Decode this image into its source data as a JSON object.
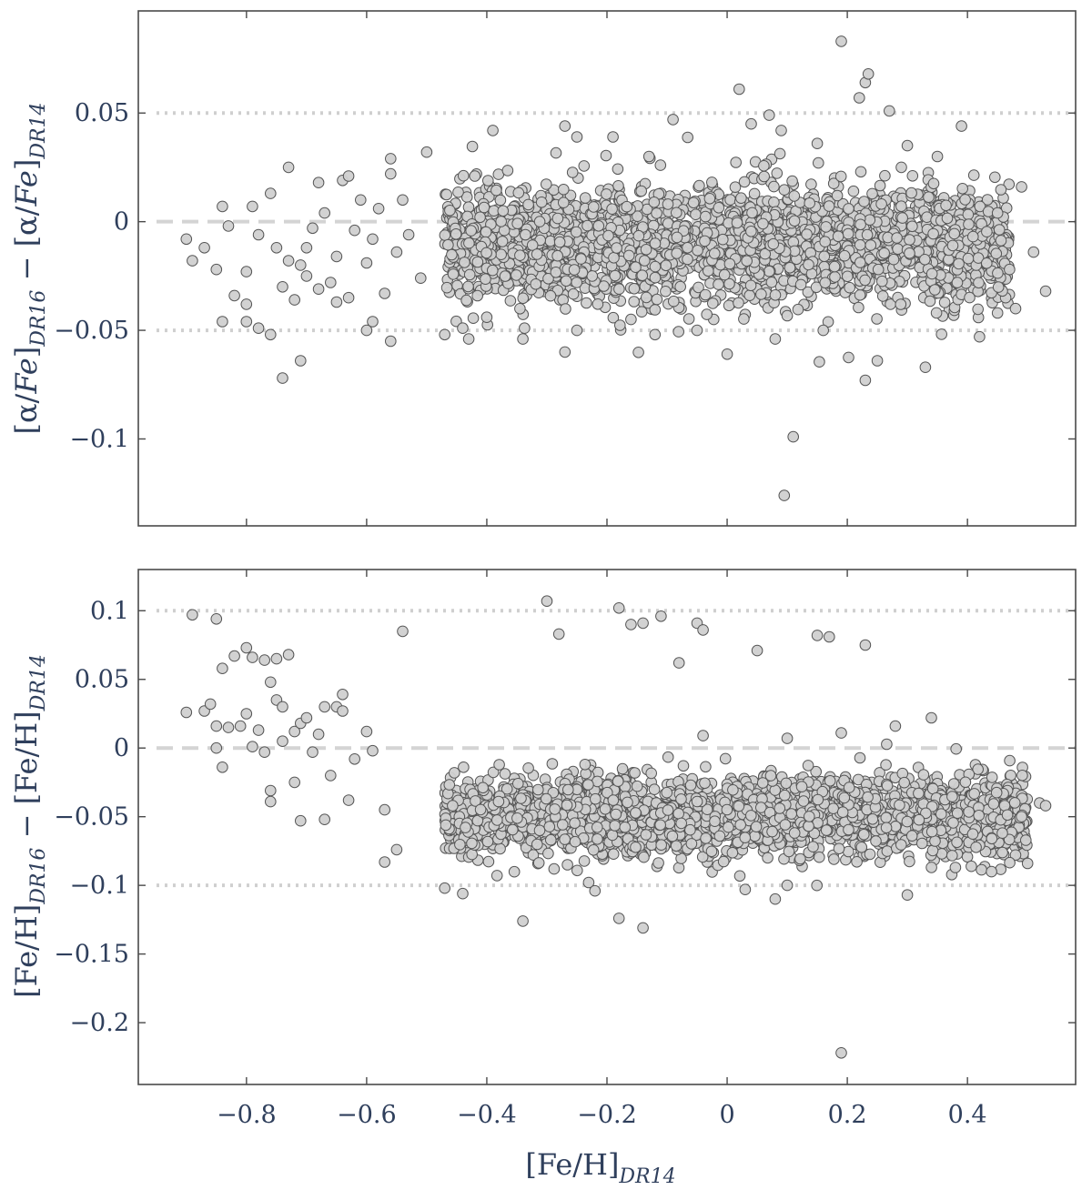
{
  "chart_data": [
    {
      "type": "scatter",
      "panel": "top",
      "xlim": [
        -0.98,
        0.58
      ],
      "ylim": [
        -0.14,
        0.097
      ],
      "xticks": [
        -0.8,
        -0.6,
        -0.4,
        -0.2,
        0,
        0.2,
        0.4
      ],
      "yticks": [
        0.05,
        0,
        -0.05,
        -0.1
      ],
      "ytick_labels": [
        "0.05",
        "0",
        "−0.05",
        "−0.1"
      ],
      "ylabel_parts": {
        "open": "[α/",
        "fe": "Fe",
        "close1": "]",
        "sub1": "DR16",
        "minus": " − [α/",
        "fe2": "Fe",
        "close2": "]",
        "sub2": "DR14"
      },
      "reference_lines": {
        "dashed": [
          0
        ],
        "dotted": [
          0.05,
          -0.05
        ]
      },
      "grid": false,
      "legend": "none",
      "bulk": {
        "n": 2600,
        "x_range": [
          -0.47,
          0.47
        ],
        "y_mean": -0.01,
        "y_sd": 0.013
      },
      "points": [
        {
          "x": -0.9,
          "y": -0.008
        },
        {
          "x": -0.89,
          "y": -0.018
        },
        {
          "x": -0.87,
          "y": -0.012
        },
        {
          "x": -0.85,
          "y": -0.022
        },
        {
          "x": -0.84,
          "y": 0.007
        },
        {
          "x": -0.83,
          "y": -0.002
        },
        {
          "x": -0.82,
          "y": -0.034
        },
        {
          "x": -0.84,
          "y": -0.046
        },
        {
          "x": -0.8,
          "y": -0.023
        },
        {
          "x": -0.79,
          "y": 0.007
        },
        {
          "x": -0.78,
          "y": -0.006
        },
        {
          "x": -0.76,
          "y": 0.013
        },
        {
          "x": -0.75,
          "y": -0.012
        },
        {
          "x": -0.74,
          "y": -0.03
        },
        {
          "x": -0.73,
          "y": 0.025
        },
        {
          "x": -0.73,
          "y": -0.018
        },
        {
          "x": -0.76,
          "y": -0.052
        },
        {
          "x": -0.78,
          "y": -0.049
        },
        {
          "x": -0.8,
          "y": -0.046
        },
        {
          "x": -0.8,
          "y": -0.038
        },
        {
          "x": -0.72,
          "y": -0.036
        },
        {
          "x": -0.71,
          "y": -0.02
        },
        {
          "x": -0.7,
          "y": -0.012
        },
        {
          "x": -0.7,
          "y": -0.025
        },
        {
          "x": -0.69,
          "y": -0.003
        },
        {
          "x": -0.68,
          "y": 0.018
        },
        {
          "x": -0.67,
          "y": 0.004
        },
        {
          "x": -0.66,
          "y": -0.028
        },
        {
          "x": -0.65,
          "y": -0.016
        },
        {
          "x": -0.64,
          "y": 0.019
        },
        {
          "x": -0.63,
          "y": 0.021
        },
        {
          "x": -0.62,
          "y": -0.004
        },
        {
          "x": -0.61,
          "y": 0.01
        },
        {
          "x": -0.6,
          "y": -0.019
        },
        {
          "x": -0.59,
          "y": -0.008
        },
        {
          "x": -0.58,
          "y": 0.006
        },
        {
          "x": -0.57,
          "y": -0.033
        },
        {
          "x": -0.56,
          "y": 0.022
        },
        {
          "x": -0.56,
          "y": 0.029
        },
        {
          "x": -0.55,
          "y": -0.014
        },
        {
          "x": -0.54,
          "y": 0.01
        },
        {
          "x": -0.53,
          "y": -0.006
        },
        {
          "x": -0.51,
          "y": -0.026
        },
        {
          "x": -0.5,
          "y": 0.032
        },
        {
          "x": -0.59,
          "y": -0.046
        },
        {
          "x": -0.6,
          "y": -0.05
        },
        {
          "x": -0.56,
          "y": -0.055
        },
        {
          "x": -0.71,
          "y": -0.064
        },
        {
          "x": -0.74,
          "y": -0.072
        },
        {
          "x": -0.68,
          "y": -0.031
        },
        {
          "x": -0.65,
          "y": -0.037
        },
        {
          "x": -0.63,
          "y": -0.035
        },
        {
          "x": -0.47,
          "y": -0.052
        },
        {
          "x": -0.43,
          "y": -0.054
        },
        {
          "x": -0.44,
          "y": -0.049
        },
        {
          "x": -0.4,
          "y": -0.044
        },
        {
          "x": -0.34,
          "y": -0.054
        },
        {
          "x": -0.27,
          "y": -0.06
        },
        {
          "x": -0.25,
          "y": -0.05
        },
        {
          "x": -0.16,
          "y": -0.045
        },
        {
          "x": -0.12,
          "y": -0.052
        },
        {
          "x": -0.05,
          "y": -0.05
        },
        {
          "x": 0.0,
          "y": -0.061
        },
        {
          "x": 0.08,
          "y": -0.054
        },
        {
          "x": 0.16,
          "y": -0.05
        },
        {
          "x": 0.23,
          "y": -0.073
        },
        {
          "x": 0.25,
          "y": -0.064
        },
        {
          "x": 0.33,
          "y": -0.067
        },
        {
          "x": 0.42,
          "y": -0.053
        },
        {
          "x": 0.45,
          "y": -0.042
        },
        {
          "x": 0.48,
          "y": -0.04
        },
        {
          "x": 0.53,
          "y": -0.032
        },
        {
          "x": 0.51,
          "y": -0.014
        },
        {
          "x": 0.49,
          "y": 0.016
        },
        {
          "x": 0.47,
          "y": -0.022
        },
        {
          "x": 0.45,
          "y": 0.004
        },
        {
          "x": -0.39,
          "y": 0.042
        },
        {
          "x": -0.27,
          "y": 0.044
        },
        {
          "x": -0.25,
          "y": 0.039
        },
        {
          "x": -0.19,
          "y": 0.039
        },
        {
          "x": -0.13,
          "y": 0.03
        },
        {
          "x": -0.09,
          "y": 0.047
        },
        {
          "x": 0.02,
          "y": 0.061
        },
        {
          "x": 0.04,
          "y": 0.045
        },
        {
          "x": 0.07,
          "y": 0.049
        },
        {
          "x": 0.09,
          "y": 0.042
        },
        {
          "x": 0.15,
          "y": 0.036
        },
        {
          "x": 0.19,
          "y": 0.083
        },
        {
          "x": 0.22,
          "y": 0.057
        },
        {
          "x": 0.23,
          "y": 0.064
        },
        {
          "x": 0.235,
          "y": 0.068
        },
        {
          "x": 0.27,
          "y": 0.051
        },
        {
          "x": 0.3,
          "y": 0.035
        },
        {
          "x": 0.35,
          "y": 0.03
        },
        {
          "x": 0.39,
          "y": 0.044
        },
        {
          "x": 0.29,
          "y": 0.025
        },
        {
          "x": 0.11,
          "y": -0.099
        },
        {
          "x": 0.095,
          "y": -0.126
        }
      ]
    },
    {
      "type": "scatter",
      "panel": "bottom",
      "xlim": [
        -0.98,
        0.58
      ],
      "ylim": [
        -0.245,
        0.13
      ],
      "xticks": [
        -0.8,
        -0.6,
        -0.4,
        -0.2,
        0,
        0.2,
        0.4
      ],
      "xtick_labels": [
        "−0.8",
        "−0.6",
        "−0.4",
        "−0.2",
        "0",
        "0.2",
        "0.4"
      ],
      "yticks": [
        0.1,
        0.05,
        0,
        -0.05,
        -0.1,
        -0.15,
        -0.2
      ],
      "ytick_labels": [
        "0.1",
        "0.05",
        "0",
        "−0.05",
        "−0.1",
        "−0.15",
        "−0.2"
      ],
      "xlabel_parts": {
        "main": "[Fe/H]",
        "sub": "DR14"
      },
      "ylabel_parts": {
        "open": "[Fe/H]",
        "sub1": "DR16",
        "minus": " − [Fe/H]",
        "sub2": "DR14"
      },
      "reference_lines": {
        "dashed": [
          0
        ],
        "dotted": [
          0.1,
          -0.1
        ]
      },
      "grid": false,
      "legend": "none",
      "bulk": {
        "n": 2600,
        "x_range": [
          -0.47,
          0.5
        ],
        "y_mean": -0.05,
        "y_sd": 0.014
      },
      "points": [
        {
          "x": -0.89,
          "y": 0.097
        },
        {
          "x": -0.85,
          "y": 0.094
        },
        {
          "x": -0.84,
          "y": 0.058
        },
        {
          "x": -0.82,
          "y": 0.067
        },
        {
          "x": -0.8,
          "y": 0.073
        },
        {
          "x": -0.79,
          "y": 0.066
        },
        {
          "x": -0.77,
          "y": 0.064
        },
        {
          "x": -0.75,
          "y": 0.065
        },
        {
          "x": -0.73,
          "y": 0.068
        },
        {
          "x": -0.76,
          "y": 0.048
        },
        {
          "x": -0.75,
          "y": 0.035
        },
        {
          "x": -0.74,
          "y": 0.03
        },
        {
          "x": -0.9,
          "y": 0.026
        },
        {
          "x": -0.87,
          "y": 0.027
        },
        {
          "x": -0.86,
          "y": 0.032
        },
        {
          "x": -0.85,
          "y": 0.016
        },
        {
          "x": -0.83,
          "y": 0.015
        },
        {
          "x": -0.81,
          "y": 0.016
        },
        {
          "x": -0.8,
          "y": 0.025
        },
        {
          "x": -0.78,
          "y": 0.013
        },
        {
          "x": -0.85,
          "y": 0.0
        },
        {
          "x": -0.84,
          "y": -0.014
        },
        {
          "x": -0.79,
          "y": 0.001
        },
        {
          "x": -0.77,
          "y": -0.003
        },
        {
          "x": -0.76,
          "y": -0.031
        },
        {
          "x": -0.76,
          "y": -0.039
        },
        {
          "x": -0.74,
          "y": 0.005
        },
        {
          "x": -0.72,
          "y": 0.012
        },
        {
          "x": -0.71,
          "y": 0.018
        },
        {
          "x": -0.7,
          "y": 0.022
        },
        {
          "x": -0.72,
          "y": -0.025
        },
        {
          "x": -0.71,
          "y": -0.053
        },
        {
          "x": -0.69,
          "y": -0.003
        },
        {
          "x": -0.68,
          "y": 0.01
        },
        {
          "x": -0.67,
          "y": 0.03
        },
        {
          "x": -0.65,
          "y": 0.03
        },
        {
          "x": -0.64,
          "y": 0.039
        },
        {
          "x": -0.64,
          "y": 0.027
        },
        {
          "x": -0.66,
          "y": -0.02
        },
        {
          "x": -0.63,
          "y": -0.038
        },
        {
          "x": -0.67,
          "y": -0.052
        },
        {
          "x": -0.62,
          "y": -0.008
        },
        {
          "x": -0.6,
          "y": 0.012
        },
        {
          "x": -0.59,
          "y": -0.002
        },
        {
          "x": -0.57,
          "y": -0.045
        },
        {
          "x": -0.57,
          "y": -0.083
        },
        {
          "x": -0.55,
          "y": -0.074
        },
        {
          "x": -0.54,
          "y": 0.085
        },
        {
          "x": -0.47,
          "y": -0.102
        },
        {
          "x": -0.44,
          "y": -0.106
        },
        {
          "x": -0.34,
          "y": -0.126
        },
        {
          "x": -0.18,
          "y": -0.124
        },
        {
          "x": -0.14,
          "y": -0.131
        },
        {
          "x": -0.22,
          "y": -0.104
        },
        {
          "x": 0.03,
          "y": -0.103
        },
        {
          "x": 0.08,
          "y": -0.11
        },
        {
          "x": 0.3,
          "y": -0.107
        },
        {
          "x": 0.19,
          "y": -0.222
        },
        {
          "x": 0.1,
          "y": -0.1
        },
        {
          "x": -0.3,
          "y": 0.107
        },
        {
          "x": -0.28,
          "y": 0.083
        },
        {
          "x": -0.18,
          "y": 0.102
        },
        {
          "x": -0.16,
          "y": 0.09
        },
        {
          "x": -0.14,
          "y": 0.091
        },
        {
          "x": -0.11,
          "y": 0.096
        },
        {
          "x": -0.08,
          "y": 0.062
        },
        {
          "x": -0.05,
          "y": 0.091
        },
        {
          "x": -0.04,
          "y": 0.086
        },
        {
          "x": 0.05,
          "y": 0.071
        },
        {
          "x": 0.15,
          "y": 0.082
        },
        {
          "x": 0.17,
          "y": 0.081
        },
        {
          "x": 0.23,
          "y": 0.075
        },
        {
          "x": -0.04,
          "y": 0.009
        },
        {
          "x": 0.1,
          "y": 0.007
        },
        {
          "x": 0.19,
          "y": 0.011
        },
        {
          "x": 0.28,
          "y": 0.016
        },
        {
          "x": 0.34,
          "y": 0.022
        },
        {
          "x": 0.52,
          "y": -0.04
        },
        {
          "x": 0.53,
          "y": -0.042
        },
        {
          "x": 0.5,
          "y": -0.084
        },
        {
          "x": 0.44,
          "y": -0.09
        },
        {
          "x": 0.38,
          "y": -0.087
        },
        {
          "x": 0.49,
          "y": -0.05
        }
      ]
    }
  ]
}
